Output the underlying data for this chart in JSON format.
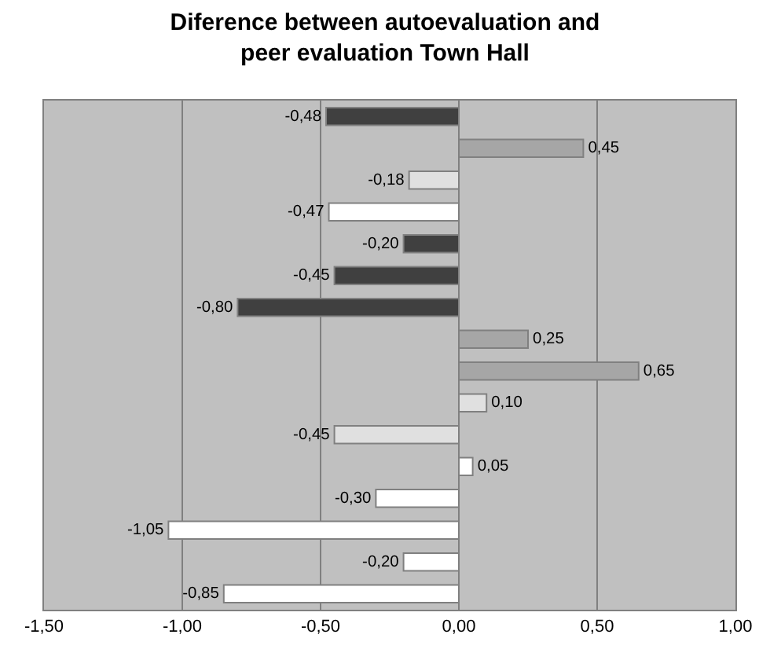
{
  "chart_data": {
    "type": "bar",
    "orientation": "horizontal",
    "title": "Diference between autoevaluation and peer evaluation Town Hall",
    "categories": [
      null,
      null,
      null,
      null,
      null,
      null,
      null,
      null,
      null,
      null,
      null,
      null,
      null,
      null,
      null,
      null
    ],
    "values": [
      -0.48,
      0.45,
      -0.18,
      -0.47,
      -0.2,
      -0.45,
      -0.8,
      0.25,
      0.65,
      0.1,
      -0.45,
      0.05,
      -0.3,
      -1.05,
      -0.2,
      -0.85
    ],
    "value_labels": [
      "-0,48",
      "0,45",
      "-0,18",
      "-0,47",
      "-0,20",
      "-0,45",
      "-0,80",
      "0,25",
      "0,65",
      "0,10",
      "-0,45",
      "0,05",
      "-0,30",
      "-1,05",
      "-0,20",
      "-0,85"
    ],
    "colors": [
      "#404040",
      "#a6a6a6",
      "#e0e0e0",
      "#ffffff",
      "#404040",
      "#404040",
      "#404040",
      "#a6a6a6",
      "#a6a6a6",
      "#e0e0e0",
      "#e0e0e0",
      "#ffffff",
      "#ffffff",
      "#ffffff",
      "#ffffff",
      "#ffffff"
    ],
    "xlim": [
      -1.5,
      1.0
    ],
    "xticks": [
      {
        "value": -1.5,
        "label": "-1,50"
      },
      {
        "value": -1.0,
        "label": "-1,00"
      },
      {
        "value": -0.5,
        "label": "-0,50"
      },
      {
        "value": 0,
        "label": "0,00"
      },
      {
        "value": 0.5,
        "label": "0,50"
      },
      {
        "value": 1.0,
        "label": "1,00"
      }
    ],
    "grid": "x",
    "legend": false,
    "tick_labels": "x"
  }
}
